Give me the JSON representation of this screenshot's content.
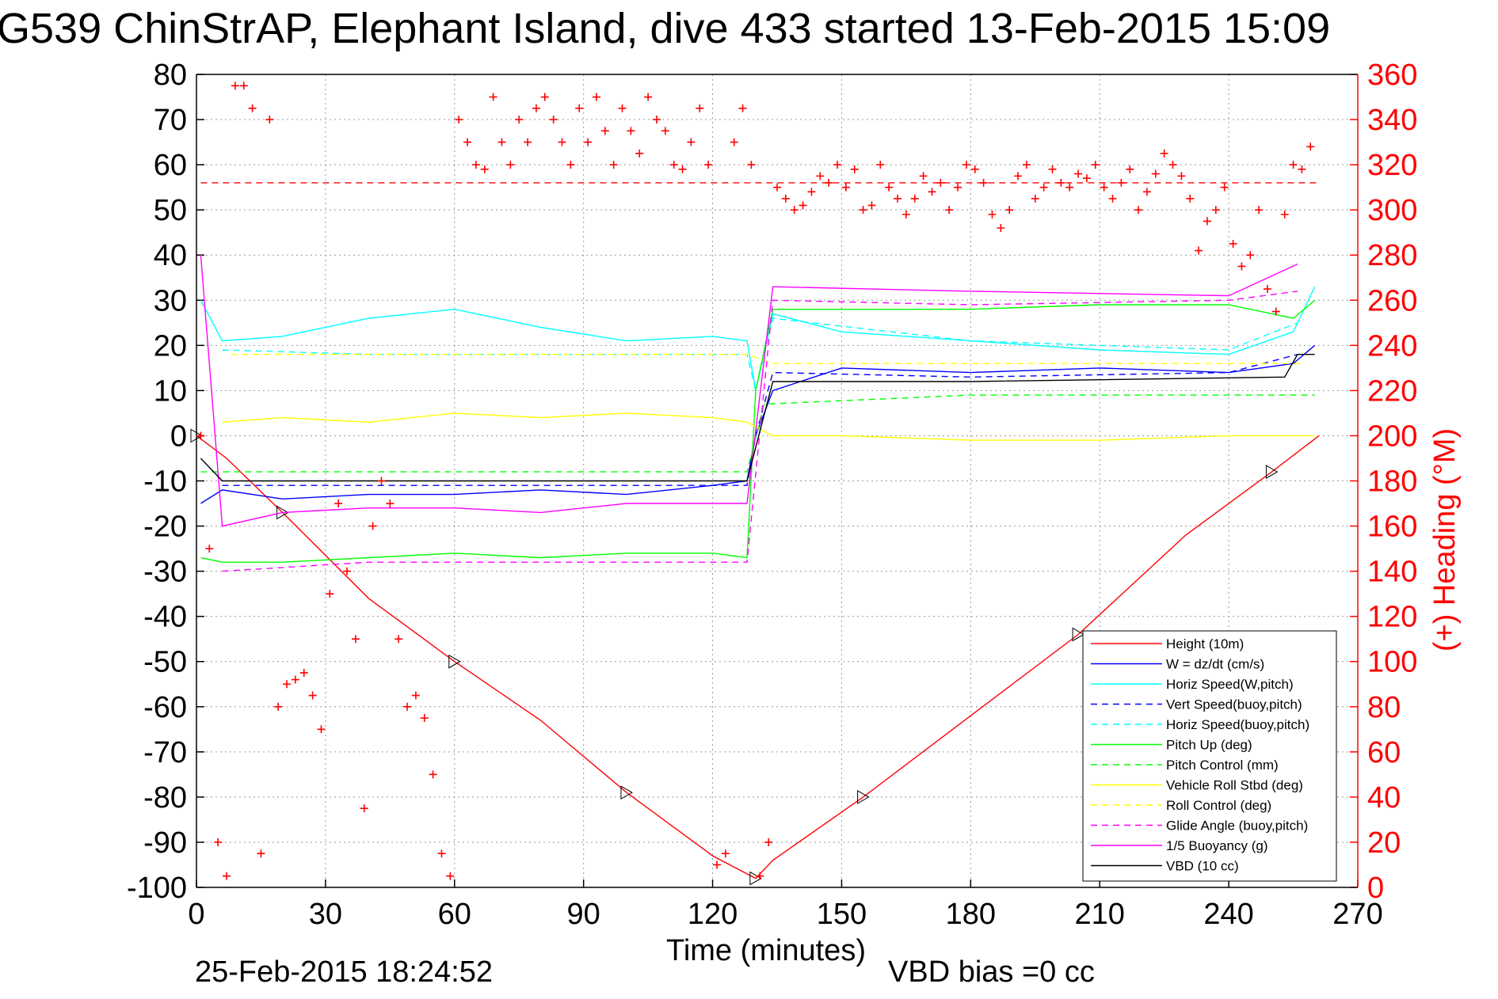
{
  "chart_data": {
    "type": "line",
    "title": "G539 ChinStrAP, Elephant Island, dive 433 started 13-Feb-2015 15:09",
    "xlabel": "Time (minutes)",
    "ylabel": "",
    "ylabel_right": "(+) Heading (°M)",
    "footer_left": "25-Feb-2015 18:24:52",
    "footer_right": "VBD bias =0 cc",
    "xlim": [
      0,
      270
    ],
    "ylim": [
      -100,
      80
    ],
    "y2lim": [
      0,
      360
    ],
    "grid": true,
    "legend_position": "bottom-right",
    "x_ticks": [
      "0",
      "30",
      "60",
      "90",
      "120",
      "150",
      "180",
      "210",
      "240",
      "270"
    ],
    "y_ticks": [
      "-100",
      "-90",
      "-80",
      "-70",
      "-60",
      "-50",
      "-40",
      "-30",
      "-20",
      "-10",
      "0",
      "10",
      "20",
      "30",
      "40",
      "50",
      "60",
      "70",
      "80"
    ],
    "y2_ticks": [
      "0",
      "20",
      "40",
      "60",
      "80",
      "100",
      "120",
      "140",
      "160",
      "180",
      "200",
      "220",
      "240",
      "260",
      "280",
      "300",
      "320",
      "340",
      "360"
    ],
    "series": [
      {
        "name": "Height (10m)",
        "color": "#ff0000",
        "style": "solid",
        "x": [
          0,
          7,
          20,
          40,
          60,
          80,
          100,
          120,
          130,
          134,
          155,
          180,
          205,
          230,
          250,
          261
        ],
        "y": [
          0,
          -5,
          -17,
          -36,
          -50,
          -63,
          -79,
          -93,
          -98,
          -94,
          -80,
          -62,
          -44,
          -22,
          -8,
          0
        ]
      },
      {
        "name": "W  = dz/dt (cm/s)",
        "color": "#0000ff",
        "style": "solid",
        "x": [
          1,
          6,
          20,
          40,
          60,
          80,
          100,
          120,
          128,
          130,
          134,
          150,
          180,
          210,
          240,
          255,
          260
        ],
        "y": [
          -15,
          -12,
          -14,
          -13,
          -13,
          -12,
          -13,
          -11,
          -10,
          0,
          10,
          15,
          14,
          15,
          14,
          16,
          20
        ]
      },
      {
        "name": "Horiz Speed(W,pitch)",
        "color": "#00ffff",
        "style": "solid",
        "x": [
          1,
          6,
          20,
          40,
          60,
          80,
          100,
          120,
          128,
          130,
          134,
          150,
          180,
          210,
          240,
          255,
          260
        ],
        "y": [
          30,
          21,
          22,
          26,
          28,
          24,
          21,
          22,
          21,
          10,
          27,
          23,
          21,
          19,
          18,
          23,
          33
        ]
      },
      {
        "name": "Vert Speed(buoy,pitch)",
        "color": "#0000ff",
        "style": "dashed",
        "x": [
          6,
          40,
          80,
          128,
          130,
          134,
          180,
          240,
          256
        ],
        "y": [
          -11,
          -11,
          -11,
          -11,
          0,
          14,
          13,
          14,
          18
        ]
      },
      {
        "name": "Horiz Speed(buoy,pitch)",
        "color": "#00ffff",
        "style": "dashed",
        "x": [
          6,
          40,
          80,
          128,
          130,
          134,
          180,
          240,
          256
        ],
        "y": [
          19,
          18,
          18,
          18,
          10,
          26,
          21,
          19,
          25
        ]
      },
      {
        "name": "Pitch Up (deg)",
        "color": "#00ff00",
        "style": "solid",
        "x": [
          1,
          6,
          20,
          40,
          60,
          80,
          100,
          120,
          128,
          130,
          134,
          150,
          180,
          210,
          240,
          255,
          260
        ],
        "y": [
          -27,
          -28,
          -28,
          -27,
          -26,
          -27,
          -26,
          -26,
          -27,
          10,
          28,
          28,
          28,
          29,
          29,
          26,
          30
        ]
      },
      {
        "name": "Pitch Control (mm)",
        "color": "#00ff00",
        "style": "dashed",
        "x": [
          1,
          128,
          132,
          180,
          260
        ],
        "y": [
          -8,
          -8,
          7,
          9,
          9
        ]
      },
      {
        "name": "Vehicle Roll Stbd (deg)",
        "color": "#ffff00",
        "style": "solid",
        "x": [
          6,
          20,
          40,
          60,
          80,
          100,
          120,
          128,
          134,
          150,
          180,
          210,
          240,
          260
        ],
        "y": [
          3,
          4,
          3,
          5,
          4,
          5,
          4,
          3,
          0,
          0,
          -1,
          -1,
          0,
          0
        ]
      },
      {
        "name": "Roll Control (deg)",
        "color": "#ffff00",
        "style": "dashed",
        "x": [
          8,
          40,
          80,
          128,
          134,
          180,
          230,
          258
        ],
        "y": [
          18,
          18,
          18,
          18,
          16,
          16,
          16,
          16
        ]
      },
      {
        "name": "Glide Angle (buoy,pitch)",
        "color": "#ff00ff",
        "style": "dashed",
        "x": [
          6,
          40,
          80,
          128,
          134,
          180,
          240,
          256
        ],
        "y": [
          -30,
          -28,
          -28,
          -28,
          30,
          29,
          30,
          32
        ]
      },
      {
        "name": "1/5 Buoyancy (g)",
        "color": "#ff00ff",
        "style": "solid",
        "x": [
          1,
          6,
          20,
          40,
          60,
          80,
          100,
          120,
          128,
          134,
          180,
          240,
          256
        ],
        "y": [
          40,
          -20,
          -17,
          -16,
          -16,
          -17,
          -15,
          -15,
          -15,
          33,
          32,
          31,
          38
        ]
      },
      {
        "name": "VBD (10 cc)",
        "color": "#000000",
        "style": "solid",
        "x": [
          1,
          6,
          40,
          80,
          128,
          134,
          180,
          253,
          256,
          260
        ],
        "y": [
          -5,
          -10,
          -10,
          -10,
          -10,
          12,
          12,
          13,
          18,
          18
        ]
      },
      {
        "name": "",
        "color": "#ff0000",
        "style": "dashed",
        "axis": "right",
        "x": [
          1,
          261
        ],
        "y": [
          312,
          312
        ]
      },
      {
        "name": "",
        "color": "#ff0000",
        "style": "markers-plus",
        "axis": "right",
        "x": [
          1,
          3,
          5,
          7,
          9,
          11,
          13,
          15,
          17,
          19,
          21,
          23,
          25,
          27,
          29,
          31,
          33,
          35,
          37,
          39,
          41,
          43,
          45,
          47,
          49,
          51,
          53,
          55,
          57,
          59,
          61,
          63,
          65,
          67,
          69,
          71,
          73,
          75,
          77,
          79,
          81,
          83,
          85,
          87,
          89,
          91,
          93,
          95,
          97,
          99,
          101,
          103,
          105,
          107,
          109,
          111,
          113,
          115,
          117,
          119,
          121,
          123,
          125,
          127,
          129,
          131,
          133,
          135,
          137,
          139,
          141,
          143,
          145,
          147,
          149,
          151,
          153,
          155,
          157,
          159,
          161,
          163,
          165,
          167,
          169,
          171,
          173,
          175,
          177,
          179,
          181,
          183,
          185,
          187,
          189,
          191,
          193,
          195,
          197,
          199,
          201,
          203,
          205,
          207,
          209,
          211,
          213,
          215,
          217,
          219,
          221,
          223,
          225,
          227,
          229,
          231,
          233,
          235,
          237,
          239,
          241,
          243,
          245,
          247,
          249,
          251,
          253,
          255,
          257,
          259
        ],
        "y": [
          200,
          150,
          20,
          5,
          355,
          355,
          345,
          15,
          340,
          80,
          90,
          92,
          95,
          85,
          70,
          130,
          170,
          140,
          110,
          35,
          160,
          180,
          170,
          110,
          80,
          85,
          75,
          50,
          15,
          5,
          340,
          330,
          320,
          318,
          350,
          330,
          320,
          340,
          330,
          345,
          350,
          340,
          330,
          320,
          345,
          330,
          350,
          335,
          320,
          345,
          335,
          325,
          350,
          340,
          335,
          320,
          318,
          330,
          345,
          320,
          10,
          15,
          330,
          345,
          320,
          5,
          20,
          310,
          305,
          300,
          302,
          308,
          315,
          312,
          320,
          310,
          318,
          300,
          302,
          320,
          310,
          305,
          298,
          305,
          315,
          308,
          312,
          300,
          310,
          320,
          318,
          312,
          298,
          292,
          300,
          315,
          320,
          305,
          310,
          318,
          312,
          310,
          316,
          314,
          320,
          310,
          305,
          312,
          318,
          300,
          308,
          316,
          325,
          320,
          315,
          305,
          282,
          295,
          300,
          310,
          285,
          275,
          280,
          300,
          265,
          255,
          298,
          320,
          318,
          328
        ]
      }
    ]
  }
}
